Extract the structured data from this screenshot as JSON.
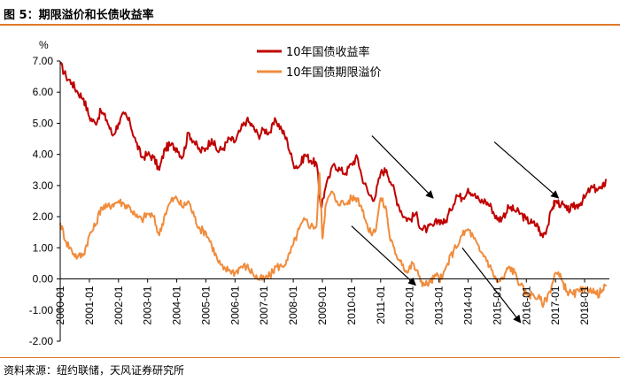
{
  "title": "图 5：期限溢价和长债收益率",
  "source": "资料来源：纽约联储，天风证券研究所",
  "colors": {
    "yield": "#c00000",
    "premium": "#f08c3c",
    "accent": "#e07a2a",
    "arrow": "#000000"
  },
  "chart_data": {
    "type": "line",
    "ylabel": "%",
    "ylim": [
      -2.0,
      7.0
    ],
    "y_ticks": [
      "7.00",
      "6.00",
      "5.00",
      "4.00",
      "3.00",
      "2.00",
      "1.00",
      "0.00",
      "-1.00",
      "-2.00"
    ],
    "x_ticks": [
      "2000-01",
      "2001-01",
      "2002-01",
      "2003-01",
      "2004-01",
      "2005-01",
      "2006-01",
      "2007-01",
      "2008-01",
      "2009-01",
      "2010-01",
      "2011-01",
      "2012-01",
      "2013-01",
      "2014-01",
      "2015-01",
      "2016-01",
      "2017-01",
      "2018-01"
    ],
    "series": [
      {
        "name": "10年国债收益率",
        "key": "yield",
        "points": [
          [
            2000.0,
            6.9
          ],
          [
            2000.2,
            6.5
          ],
          [
            2000.4,
            6.3
          ],
          [
            2000.6,
            6.0
          ],
          [
            2000.8,
            5.8
          ],
          [
            2001.0,
            5.2
          ],
          [
            2001.2,
            5.0
          ],
          [
            2001.4,
            5.4
          ],
          [
            2001.6,
            5.1
          ],
          [
            2001.8,
            4.6
          ],
          [
            2002.0,
            5.0
          ],
          [
            2002.2,
            5.3
          ],
          [
            2002.4,
            5.0
          ],
          [
            2002.6,
            4.4
          ],
          [
            2002.8,
            3.9
          ],
          [
            2003.0,
            4.0
          ],
          [
            2003.2,
            3.9
          ],
          [
            2003.4,
            3.5
          ],
          [
            2003.6,
            4.2
          ],
          [
            2003.8,
            4.3
          ],
          [
            2004.0,
            4.2
          ],
          [
            2004.2,
            3.9
          ],
          [
            2004.4,
            4.7
          ],
          [
            2004.6,
            4.4
          ],
          [
            2004.8,
            4.1
          ],
          [
            2005.0,
            4.2
          ],
          [
            2005.2,
            4.5
          ],
          [
            2005.4,
            4.1
          ],
          [
            2005.6,
            4.2
          ],
          [
            2005.8,
            4.5
          ],
          [
            2006.0,
            4.4
          ],
          [
            2006.2,
            4.8
          ],
          [
            2006.4,
            5.1
          ],
          [
            2006.6,
            4.9
          ],
          [
            2006.8,
            4.6
          ],
          [
            2007.0,
            4.8
          ],
          [
            2007.2,
            4.7
          ],
          [
            2007.4,
            5.1
          ],
          [
            2007.6,
            4.8
          ],
          [
            2007.8,
            4.4
          ],
          [
            2008.0,
            3.7
          ],
          [
            2008.2,
            3.6
          ],
          [
            2008.4,
            4.0
          ],
          [
            2008.6,
            3.8
          ],
          [
            2008.8,
            3.7
          ],
          [
            2008.95,
            2.3
          ],
          [
            2009.1,
            2.9
          ],
          [
            2009.4,
            3.7
          ],
          [
            2009.6,
            3.5
          ],
          [
            2009.8,
            3.4
          ],
          [
            2010.0,
            3.7
          ],
          [
            2010.2,
            3.9
          ],
          [
            2010.35,
            3.3
          ],
          [
            2010.6,
            2.7
          ],
          [
            2010.8,
            2.6
          ],
          [
            2011.0,
            3.4
          ],
          [
            2011.2,
            3.5
          ],
          [
            2011.4,
            3.0
          ],
          [
            2011.6,
            2.4
          ],
          [
            2011.8,
            2.0
          ],
          [
            2012.0,
            1.9
          ],
          [
            2012.2,
            2.1
          ],
          [
            2012.4,
            1.6
          ],
          [
            2012.6,
            1.6
          ],
          [
            2012.8,
            1.7
          ],
          [
            2013.0,
            1.9
          ],
          [
            2013.2,
            1.8
          ],
          [
            2013.4,
            2.2
          ],
          [
            2013.6,
            2.7
          ],
          [
            2013.8,
            2.6
          ],
          [
            2014.0,
            2.9
          ],
          [
            2014.2,
            2.7
          ],
          [
            2014.4,
            2.5
          ],
          [
            2014.6,
            2.5
          ],
          [
            2014.8,
            2.3
          ],
          [
            2015.0,
            1.9
          ],
          [
            2015.2,
            2.0
          ],
          [
            2015.4,
            2.3
          ],
          [
            2015.6,
            2.2
          ],
          [
            2015.8,
            2.1
          ],
          [
            2016.0,
            1.9
          ],
          [
            2016.2,
            1.8
          ],
          [
            2016.4,
            1.7
          ],
          [
            2016.5,
            1.4
          ],
          [
            2016.7,
            1.6
          ],
          [
            2016.9,
            2.3
          ],
          [
            2017.0,
            2.5
          ],
          [
            2017.2,
            2.4
          ],
          [
            2017.4,
            2.2
          ],
          [
            2017.6,
            2.3
          ],
          [
            2017.8,
            2.4
          ],
          [
            2018.0,
            2.6
          ],
          [
            2018.2,
            2.9
          ],
          [
            2018.4,
            2.9
          ],
          [
            2018.6,
            2.9
          ],
          [
            2018.75,
            3.2
          ]
        ]
      },
      {
        "name": "10年国债期限溢价",
        "key": "premium",
        "points": [
          [
            2000.0,
            1.8
          ],
          [
            2000.2,
            1.2
          ],
          [
            2000.4,
            0.9
          ],
          [
            2000.6,
            0.7
          ],
          [
            2000.8,
            0.8
          ],
          [
            2001.0,
            1.4
          ],
          [
            2001.2,
            1.7
          ],
          [
            2001.4,
            2.3
          ],
          [
            2001.6,
            2.3
          ],
          [
            2001.8,
            2.4
          ],
          [
            2002.0,
            2.5
          ],
          [
            2002.2,
            2.4
          ],
          [
            2002.4,
            2.3
          ],
          [
            2002.6,
            2.0
          ],
          [
            2002.8,
            1.9
          ],
          [
            2003.0,
            2.1
          ],
          [
            2003.2,
            2.0
          ],
          [
            2003.4,
            1.4
          ],
          [
            2003.6,
            2.1
          ],
          [
            2003.8,
            2.5
          ],
          [
            2004.0,
            2.6
          ],
          [
            2004.2,
            2.3
          ],
          [
            2004.4,
            2.5
          ],
          [
            2004.6,
            2.0
          ],
          [
            2004.8,
            1.6
          ],
          [
            2005.0,
            1.5
          ],
          [
            2005.2,
            1.1
          ],
          [
            2005.4,
            0.6
          ],
          [
            2005.6,
            0.3
          ],
          [
            2005.8,
            0.3
          ],
          [
            2006.0,
            0.2
          ],
          [
            2006.2,
            0.4
          ],
          [
            2006.4,
            0.4
          ],
          [
            2006.6,
            0.2
          ],
          [
            2006.8,
            0.0
          ],
          [
            2007.0,
            0.0
          ],
          [
            2007.2,
            0.1
          ],
          [
            2007.4,
            0.4
          ],
          [
            2007.6,
            0.4
          ],
          [
            2007.8,
            0.6
          ],
          [
            2008.0,
            1.1
          ],
          [
            2008.2,
            1.6
          ],
          [
            2008.4,
            1.9
          ],
          [
            2008.6,
            1.7
          ],
          [
            2008.8,
            1.7
          ],
          [
            2008.9,
            3.4
          ],
          [
            2009.0,
            1.3
          ],
          [
            2009.1,
            2.3
          ],
          [
            2009.3,
            2.8
          ],
          [
            2009.5,
            2.5
          ],
          [
            2009.8,
            2.4
          ],
          [
            2010.0,
            2.6
          ],
          [
            2010.2,
            2.6
          ],
          [
            2010.4,
            2.2
          ],
          [
            2010.6,
            1.5
          ],
          [
            2010.8,
            1.5
          ],
          [
            2011.0,
            2.6
          ],
          [
            2011.2,
            2.2
          ],
          [
            2011.3,
            1.4
          ],
          [
            2011.5,
            0.8
          ],
          [
            2011.7,
            0.6
          ],
          [
            2011.9,
            0.2
          ],
          [
            2012.1,
            0.5
          ],
          [
            2012.3,
            0.1
          ],
          [
            2012.5,
            -0.2
          ],
          [
            2012.7,
            -0.1
          ],
          [
            2012.9,
            0.1
          ],
          [
            2013.1,
            0.0
          ],
          [
            2013.3,
            0.5
          ],
          [
            2013.5,
            0.9
          ],
          [
            2013.8,
            1.4
          ],
          [
            2014.0,
            1.6
          ],
          [
            2014.2,
            1.3
          ],
          [
            2014.4,
            0.9
          ],
          [
            2014.6,
            0.7
          ],
          [
            2014.8,
            0.3
          ],
          [
            2015.0,
            -0.1
          ],
          [
            2015.2,
            0.0
          ],
          [
            2015.4,
            0.4
          ],
          [
            2015.6,
            0.2
          ],
          [
            2015.8,
            -0.2
          ],
          [
            2016.0,
            -0.5
          ],
          [
            2016.2,
            -0.5
          ],
          [
            2016.4,
            -0.6
          ],
          [
            2016.6,
            -0.8
          ],
          [
            2016.8,
            -0.4
          ],
          [
            2017.0,
            0.2
          ],
          [
            2017.2,
            0.0
          ],
          [
            2017.4,
            -0.4
          ],
          [
            2017.6,
            -0.5
          ],
          [
            2017.8,
            -0.4
          ],
          [
            2018.0,
            -0.4
          ],
          [
            2018.2,
            -0.3
          ],
          [
            2018.4,
            -0.5
          ],
          [
            2018.6,
            -0.4
          ],
          [
            2018.75,
            -0.2
          ]
        ]
      }
    ],
    "annotations": [
      {
        "type": "arrow",
        "from": [
          2010.7,
          4.6
        ],
        "to": [
          2012.8,
          2.6
        ]
      },
      {
        "type": "arrow",
        "from": [
          2010.0,
          1.7
        ],
        "to": [
          2012.2,
          -0.2
        ]
      },
      {
        "type": "arrow",
        "from": [
          2013.8,
          1.0
        ],
        "to": [
          2015.8,
          -1.4
        ]
      },
      {
        "type": "arrow",
        "from": [
          2014.9,
          4.4
        ],
        "to": [
          2017.1,
          2.6
        ]
      }
    ]
  }
}
